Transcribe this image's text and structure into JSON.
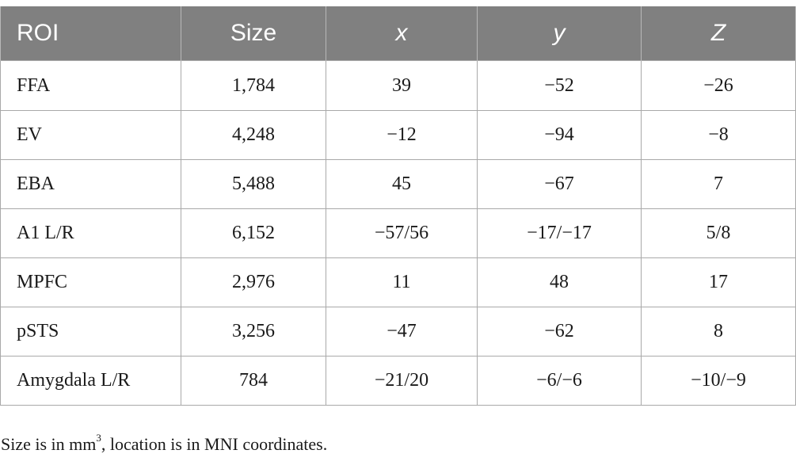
{
  "table": {
    "headers": [
      "ROI",
      "Size",
      "x",
      "y",
      "Z"
    ],
    "rows": [
      [
        "FFA",
        "1,784",
        "39",
        "−52",
        "−26"
      ],
      [
        "EV",
        "4,248",
        "−12",
        "−94",
        "−8"
      ],
      [
        "EBA",
        "5,488",
        "45",
        "−67",
        "7"
      ],
      [
        "A1 L/R",
        "6,152",
        "−57/56",
        "−17/−17",
        "5/8"
      ],
      [
        "MPFC",
        "2,976",
        "11",
        "48",
        "17"
      ],
      [
        "pSTS",
        "3,256",
        "−47",
        "−62",
        "8"
      ],
      [
        "Amygdala L/R",
        "784",
        "−21/20",
        "−6/−6",
        "−10/−9"
      ]
    ]
  },
  "footnote": {
    "before": "Size is in mm",
    "sup": "3",
    "after": ", location is in MNI coordinates."
  },
  "colors": {
    "header_bg": "#808080",
    "header_text": "#ffffff",
    "border": "#a9a9a9"
  }
}
